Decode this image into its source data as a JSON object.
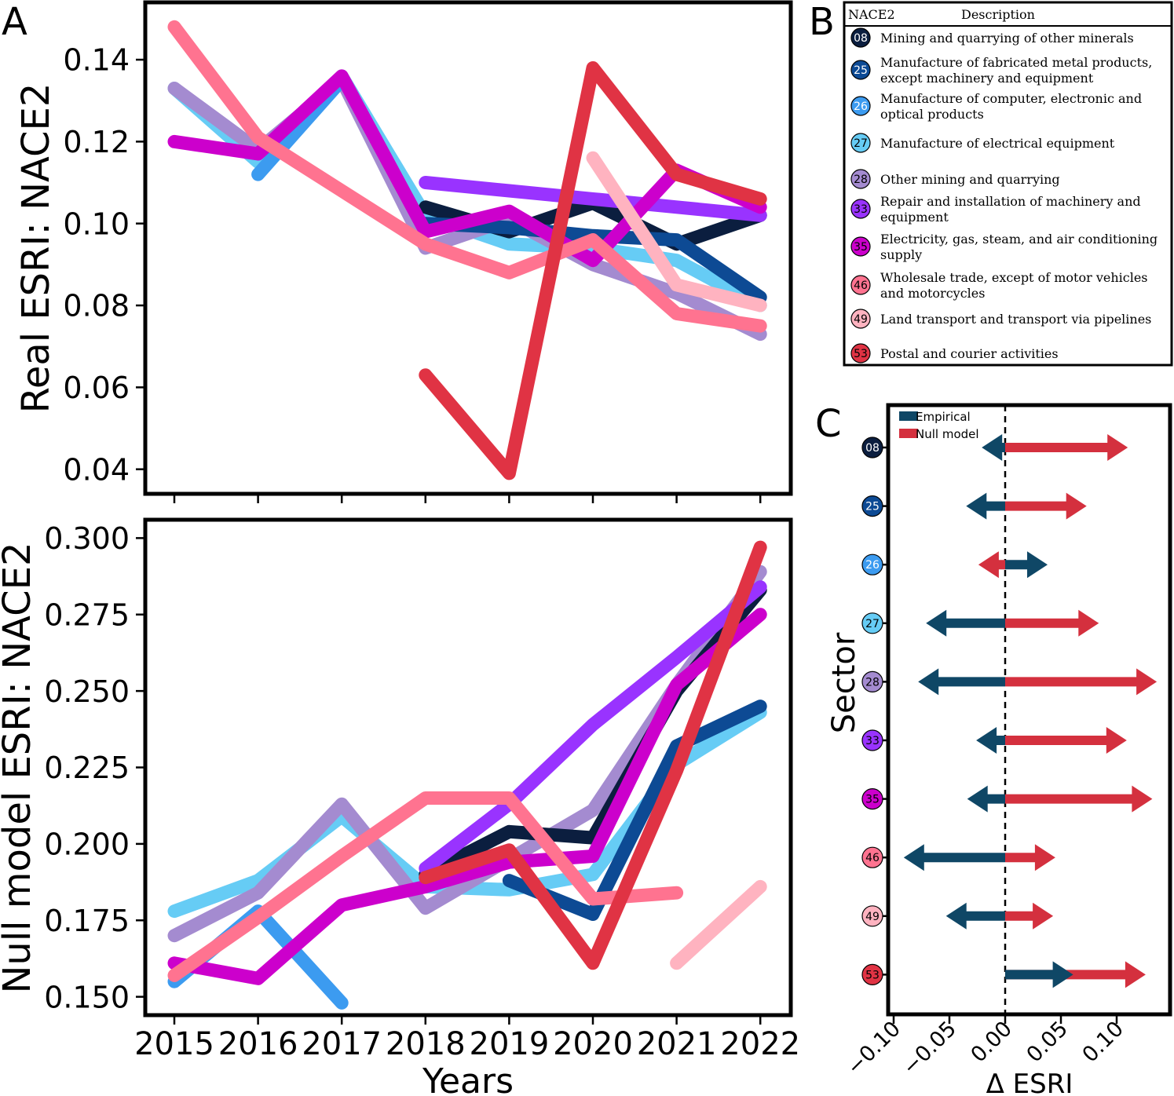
{
  "panel_labels": {
    "a": "A",
    "b": "B",
    "c": "C"
  },
  "colors": {
    "08": "#0b1e3f",
    "25": "#0d4a94",
    "26": "#3c9bf0",
    "27": "#66ccf5",
    "28": "#a48bd0",
    "33": "#9933ff",
    "35": "#cc00cc",
    "46": "#ff7390",
    "49": "#ffb3c0",
    "53": "#e03344",
    "empirical": "#0f4766",
    "null_model": "#d4303e"
  },
  "chart_data": [
    {
      "id": "A",
      "type": "line",
      "xlabel": "",
      "ylabel": "Real ESRI: NACE2",
      "x": [
        2015,
        2016,
        2017,
        2018,
        2019,
        2020,
        2021,
        2022
      ],
      "ylim": [
        0.034,
        0.154
      ],
      "yticks": [
        "0.04",
        "0.06",
        "0.08",
        "0.10",
        "0.12",
        "0.14"
      ],
      "series": [
        {
          "code": "27",
          "values": [
            0.133,
            0.115,
            0.136,
            0.102,
            0.095,
            0.094,
            0.091,
            0.08
          ]
        },
        {
          "code": "28",
          "values": [
            0.133,
            0.118,
            0.135,
            0.094,
            0.101,
            0.09,
            0.083,
            0.073
          ]
        },
        {
          "code": "26",
          "values": [
            null,
            0.112,
            0.135,
            null,
            null,
            null,
            null,
            null
          ]
        },
        {
          "code": "08",
          "values": [
            null,
            null,
            null,
            0.104,
            0.098,
            0.105,
            0.095,
            0.102
          ]
        },
        {
          "code": "25",
          "values": [
            null,
            null,
            null,
            0.1,
            0.099,
            0.097,
            0.096,
            0.082
          ]
        },
        {
          "code": "33",
          "values": [
            null,
            null,
            null,
            0.11,
            0.108,
            0.106,
            0.104,
            0.102
          ]
        },
        {
          "code": "35",
          "values": [
            0.12,
            0.117,
            0.136,
            0.098,
            0.103,
            0.091,
            0.113,
            0.104
          ]
        },
        {
          "code": "49",
          "values": [
            null,
            null,
            null,
            null,
            null,
            0.116,
            0.085,
            0.08
          ]
        },
        {
          "code": "46",
          "values": [
            0.148,
            0.121,
            0.108,
            0.095,
            0.088,
            0.096,
            0.078,
            0.075
          ]
        },
        {
          "code": "53",
          "values": [
            null,
            null,
            null,
            0.063,
            0.039,
            0.138,
            0.112,
            0.106
          ]
        }
      ]
    },
    {
      "id": "A2",
      "type": "line",
      "xlabel": "Years",
      "ylabel": "Null model ESRI: NACE2",
      "x": [
        2015,
        2016,
        2017,
        2018,
        2019,
        2020,
        2021,
        2022
      ],
      "xtick_labels": [
        "2015",
        "2016",
        "2017",
        "2018",
        "2019",
        "2020",
        "2021",
        "2022"
      ],
      "ylim": [
        0.144,
        0.306
      ],
      "yticks": [
        "0.150",
        "0.175",
        "0.200",
        "0.225",
        "0.250",
        "0.275",
        "0.300"
      ],
      "series": [
        {
          "code": "27",
          "values": [
            0.178,
            0.188,
            0.209,
            0.186,
            0.185,
            0.19,
            0.226,
            0.243
          ]
        },
        {
          "code": "26",
          "values": [
            0.155,
            0.178,
            0.148,
            null,
            null,
            null,
            null,
            null
          ]
        },
        {
          "code": "28",
          "values": [
            0.17,
            0.184,
            0.213,
            0.179,
            0.195,
            0.211,
            0.252,
            0.289
          ]
        },
        {
          "code": "25",
          "values": [
            null,
            null,
            null,
            null,
            0.188,
            0.177,
            0.232,
            0.245
          ]
        },
        {
          "code": "08",
          "values": [
            null,
            null,
            null,
            0.19,
            0.204,
            0.202,
            0.25,
            0.283
          ]
        },
        {
          "code": "33",
          "values": [
            null,
            null,
            null,
            0.192,
            0.213,
            0.239,
            0.261,
            0.284
          ]
        },
        {
          "code": "35",
          "values": [
            0.161,
            0.156,
            0.18,
            0.186,
            0.194,
            0.196,
            0.252,
            0.275
          ]
        },
        {
          "code": "46",
          "values": [
            0.157,
            0.176,
            0.196,
            0.215,
            0.215,
            0.182,
            0.184,
            null
          ]
        },
        {
          "code": "49",
          "values": [
            null,
            null,
            null,
            null,
            null,
            null,
            0.161,
            0.186
          ]
        },
        {
          "code": "53",
          "values": [
            null,
            null,
            null,
            0.189,
            0.198,
            0.161,
            0.224,
            0.297
          ]
        }
      ]
    },
    {
      "id": "B",
      "type": "table",
      "columns": [
        "NACE2",
        "Description"
      ],
      "rows": [
        {
          "code": "08",
          "lines": [
            "Mining and quarrying of other minerals"
          ]
        },
        {
          "code": "25",
          "lines": [
            "Manufacture of fabricated metal products,",
            "except machinery and equipment"
          ]
        },
        {
          "code": "26",
          "lines": [
            "Manufacture of computer, electronic and",
            "optical products"
          ]
        },
        {
          "code": "27",
          "lines": [
            "Manufacture of electrical equipment"
          ]
        },
        {
          "code": "28",
          "lines": [
            "Other mining and quarrying"
          ]
        },
        {
          "code": "33",
          "lines": [
            "Repair and installation of machinery and",
            "equipment"
          ]
        },
        {
          "code": "35",
          "lines": [
            "Electricity, gas, steam, and air conditioning",
            "supply"
          ]
        },
        {
          "code": "46",
          "lines": [
            "Wholesale trade, except of motor vehicles",
            " and motorcycles"
          ]
        },
        {
          "code": "49",
          "lines": [
            "Land transport and transport via pipelines"
          ]
        },
        {
          "code": "53",
          "lines": [
            "Postal and courier activities"
          ]
        }
      ]
    },
    {
      "id": "C",
      "type": "bar",
      "xlabel": "Δ ESRI",
      "ylabel": "Sector",
      "xlim": [
        -0.1,
        0.145
      ],
      "xticks": [
        -0.1,
        -0.05,
        0.0,
        0.05,
        0.1
      ],
      "xtick_labels": [
        "−0.10",
        "−0.05",
        "0.00",
        "0.05",
        "0.10"
      ],
      "legend": [
        "Empirical",
        "Null model"
      ],
      "legend_position": "top-left",
      "categories": [
        "08",
        "25",
        "26",
        "27",
        "28",
        "33",
        "35",
        "46",
        "49",
        "53"
      ],
      "series": [
        {
          "name": "Empirical",
          "values": [
            -0.021,
            -0.035,
            0.038,
            -0.071,
            -0.078,
            -0.026,
            -0.034,
            -0.091,
            -0.053,
            0.061
          ]
        },
        {
          "name": "Null model",
          "values": [
            0.11,
            0.073,
            -0.024,
            0.084,
            0.136,
            0.109,
            0.132,
            0.045,
            0.043,
            0.126
          ]
        }
      ]
    }
  ]
}
